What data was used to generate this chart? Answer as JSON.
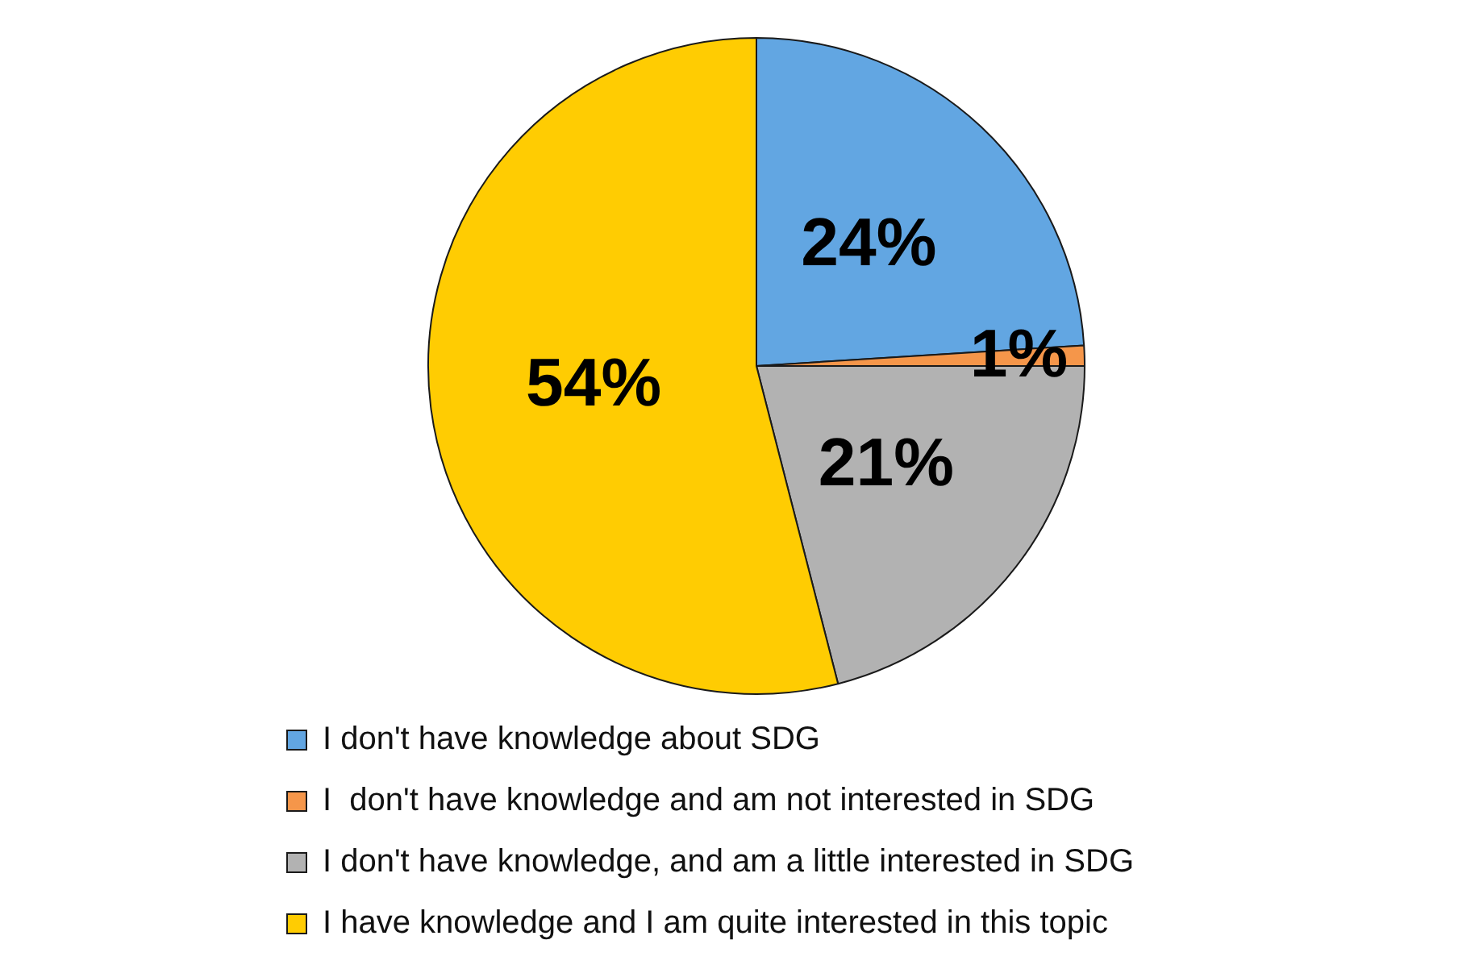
{
  "chart_data": {
    "type": "pie",
    "categories": [
      "I don't have knowledge about SDG",
      "I  don't have knowledge and am not interested in SDG",
      "I don't have knowledge, and am a little interested in SDG",
      "I have knowledge and I am quite interested in this topic"
    ],
    "values": [
      24,
      1,
      21,
      54
    ],
    "colors": [
      "#62a6e2",
      "#f5964a",
      "#b2b2b2",
      "#ffcc02"
    ],
    "value_labels": [
      "24%",
      "1%",
      "21%",
      "54%"
    ],
    "legend": "bottom"
  }
}
